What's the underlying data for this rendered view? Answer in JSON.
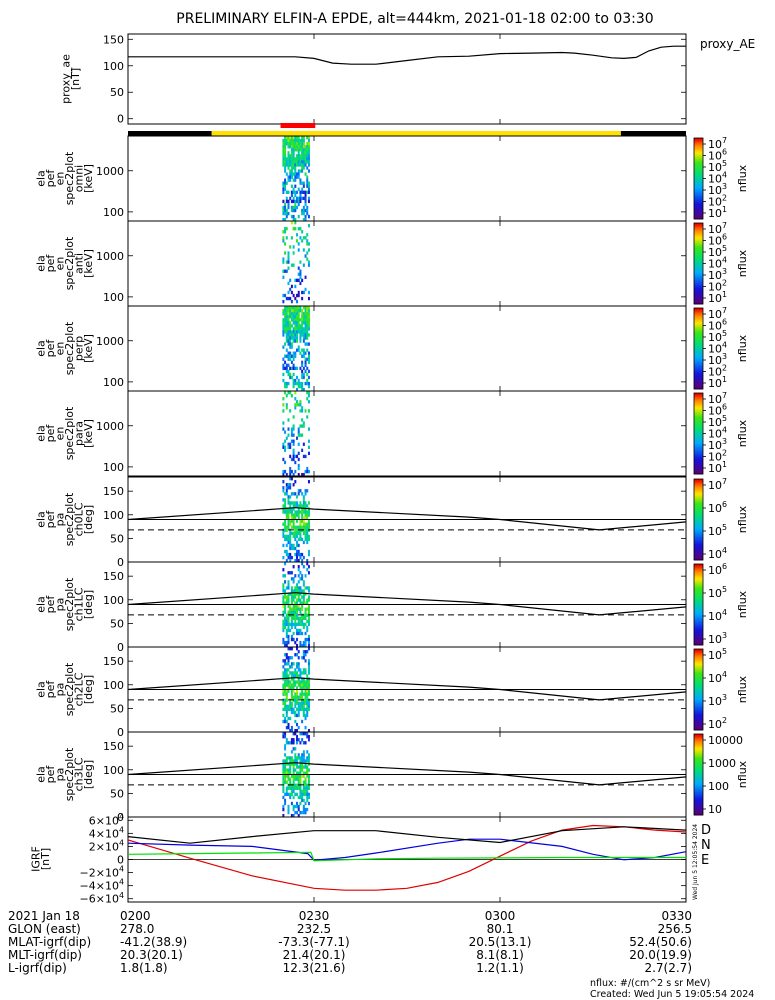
{
  "title": "PRELIMINARY ELFIN-A EPDE, alt=444km, 2021-01-18 02:00 to 03:30",
  "created": "Created: Wed Jun  5 19:05:54 2024",
  "side_stamp": "Wed Jun  5 12:05:54 2024",
  "nflux_units": "nflux: #/(cm^2 s sr MeV)",
  "colors": {
    "ae_line": "#000000",
    "status_black": "#000000",
    "status_yellow": "#ffe000",
    "status_red": "#ff0000",
    "D": "#e00000",
    "N": "#0000e0",
    "E": "#00e000"
  },
  "time_axis": {
    "ticks": [
      "0200",
      "0230",
      "0300",
      "0330"
    ],
    "tick_minutes": [
      0,
      30,
      60,
      90
    ],
    "rows": [
      {
        "label": "2021 Jan 18",
        "values": [
          "0200",
          "0230",
          "0300",
          "0330"
        ]
      },
      {
        "label": "GLON (east)",
        "values": [
          "278.0",
          "232.5",
          "80.1",
          "256.5"
        ]
      },
      {
        "label": "MLAT-igrf(dip)",
        "values": [
          "-41.2(38.9)",
          "-73.3(-77.1)",
          "20.5(13.1)",
          "52.4(50.6)"
        ]
      },
      {
        "label": "MLT-igrf(dip)",
        "values": [
          "20.3(20.1)",
          "21.4(20.1)",
          "8.1(8.1)",
          "20.0(19.9)"
        ]
      },
      {
        "label": "L-igrf(dip)",
        "values": [
          "1.8(1.8)",
          "12.3(21.6)",
          "1.2(1.1)",
          "2.7(2.7)"
        ]
      }
    ]
  },
  "status_bar": {
    "segments": [
      {
        "from": 0,
        "to": 13.5,
        "color": "black"
      },
      {
        "from": 13.5,
        "to": 79.5,
        "color": "yellow"
      },
      {
        "from": 79.5,
        "to": 90,
        "color": "black"
      }
    ],
    "science": {
      "from": 24.6,
      "to": 30.2,
      "color": "red"
    }
  },
  "panels": [
    {
      "id": "ae",
      "ylabel": [
        "proxy_ae",
        "[nT]"
      ],
      "legend": "proxy_AE",
      "ticks": [
        "150",
        "100",
        "50",
        "0"
      ]
    },
    {
      "id": "omni",
      "ylabel": [
        "ela",
        "pef",
        "en",
        "spec2plot",
        "omni",
        "[keV]"
      ],
      "ticks": [
        "1000",
        "100"
      ],
      "cb_label": "nflux",
      "cb_ticks": [
        "10^7",
        "10^6",
        "10^5",
        "10^4",
        "10^3",
        "10^2",
        "10^1"
      ]
    },
    {
      "id": "anti",
      "ylabel": [
        "ela",
        "pef",
        "en",
        "spec2plot",
        "anti",
        "[keV]"
      ],
      "ticks": [
        "1000",
        "100"
      ],
      "cb_label": "nflux",
      "cb_ticks": [
        "10^7",
        "10^6",
        "10^5",
        "10^4",
        "10^3",
        "10^2",
        "10^1"
      ]
    },
    {
      "id": "perp",
      "ylabel": [
        "ela",
        "pef",
        "en",
        "spec2plot",
        "perp",
        "[keV]"
      ],
      "ticks": [
        "1000",
        "100"
      ],
      "cb_label": "nflux",
      "cb_ticks": [
        "10^7",
        "10^6",
        "10^5",
        "10^4",
        "10^3",
        "10^2",
        "10^1"
      ]
    },
    {
      "id": "para",
      "ylabel": [
        "ela",
        "pef",
        "en",
        "spec2plot",
        "para",
        "[keV]"
      ],
      "ticks": [
        "1000",
        "100"
      ],
      "cb_label": "nflux",
      "cb_ticks": [
        "10^7",
        "10^6",
        "10^5",
        "10^4",
        "10^3",
        "10^2",
        "10^1"
      ]
    },
    {
      "id": "ch0",
      "ylabel": [
        "ela",
        "pef",
        "pa",
        "spec2plot",
        "ch0LC",
        "[deg]"
      ],
      "ticks": [
        "150",
        "100",
        "50",
        "0"
      ],
      "cb_label": "nflux",
      "cb_ticks": [
        "10^7",
        "10^6",
        "10^5",
        "10^4"
      ]
    },
    {
      "id": "ch1",
      "ylabel": [
        "ela",
        "pef",
        "pa",
        "spec2plot",
        "ch1LC",
        "[deg]"
      ],
      "ticks": [
        "150",
        "100",
        "50",
        "0"
      ],
      "cb_label": "nflux",
      "cb_ticks": [
        "10^6",
        "10^5",
        "10^4",
        "10^3"
      ]
    },
    {
      "id": "ch2",
      "ylabel": [
        "ela",
        "pef",
        "pa",
        "spec2plot",
        "ch2LC",
        "[deg]"
      ],
      "ticks": [
        "150",
        "100",
        "50",
        "0"
      ],
      "cb_label": "nflux",
      "cb_ticks": [
        "10^5",
        "10^4",
        "10^3",
        "10^2"
      ]
    },
    {
      "id": "ch3",
      "ylabel": [
        "ela",
        "pef",
        "pa",
        "spec2plot",
        "ch3LC",
        "[deg]"
      ],
      "ticks": [
        "150",
        "100",
        "50",
        "0"
      ],
      "cb_label": "nflux",
      "cb_ticks": [
        "10000",
        "1000",
        "100",
        "10"
      ]
    },
    {
      "id": "igrf",
      "ylabel": [
        "IGRF",
        "[nT]"
      ],
      "ticks": [
        "6×10^4",
        "4×10^4",
        "2×10^4",
        "0",
        "−2×10^4",
        "−4×10^4",
        "−6×10^4"
      ],
      "legend": [
        "D",
        "N",
        "E"
      ]
    }
  ],
  "chart_data": {
    "type": "line",
    "x_unit": "minutes after 2021-01-18 02:00",
    "xlim": [
      0,
      90
    ],
    "proxy_ae": {
      "ylim": [
        -10,
        160
      ],
      "x": [
        0,
        10,
        20,
        27,
        30,
        33,
        36,
        40,
        45,
        50,
        55,
        60,
        65,
        70,
        72,
        75,
        78,
        80,
        82,
        84,
        86,
        88,
        90
      ],
      "y": [
        117,
        117,
        117,
        117,
        114,
        105,
        103,
        103,
        110,
        117,
        118,
        123,
        124,
        125,
        124,
        120,
        115,
        114,
        116,
        128,
        135,
        137,
        137
      ]
    },
    "energy_spectrograms": {
      "yscale": "log",
      "ylim_keV": [
        60,
        7000
      ],
      "active_time_range": [
        24.9,
        29.3
      ],
      "note_visible": "flux only during science zone"
    },
    "pitch_angle": {
      "ylim_deg": [
        0,
        180
      ],
      "solid_curve": {
        "x": [
          0,
          27,
          30,
          55,
          60,
          76,
          90
        ],
        "y": [
          90,
          115,
          112,
          95,
          90,
          68,
          85
        ]
      },
      "dashed_curve": {
        "y": 68
      },
      "horizontal_line": {
        "y": 90
      }
    },
    "igrf": {
      "ylim": [
        -65000,
        65000
      ],
      "series": [
        {
          "name": "D",
          "x": [
            0,
            10,
            20,
            30,
            35,
            40,
            45,
            50,
            55,
            60,
            65,
            70,
            75,
            80,
            85,
            90
          ],
          "y": [
            30000,
            2000,
            -25000,
            -44000,
            -47000,
            -47000,
            -44000,
            -35000,
            -18000,
            5000,
            28000,
            45000,
            52000,
            50000,
            45000,
            42000
          ]
        },
        {
          "name": "N",
          "x": [
            0,
            10,
            20,
            29,
            30,
            35,
            40,
            50,
            55,
            60,
            70,
            75,
            80,
            85,
            90
          ],
          "y": [
            25000,
            22000,
            20000,
            9000,
            -1000,
            3000,
            10000,
            25000,
            31000,
            31000,
            20000,
            8000,
            -500,
            3000,
            12000
          ]
        },
        {
          "name": "E",
          "x": [
            0,
            10,
            20,
            29.5,
            30,
            40,
            50,
            60,
            70,
            80,
            90
          ],
          "y": [
            8000,
            9000,
            10000,
            11000,
            -2000,
            1000,
            2000,
            2500,
            3000,
            3000,
            3000
          ]
        },
        {
          "name": "",
          "x": [
            0,
            10,
            20,
            30,
            40,
            50,
            60,
            70,
            80,
            90
          ],
          "y": [
            35000,
            25000,
            35000,
            44000,
            44000,
            34000,
            26000,
            44000,
            50000,
            45000
          ]
        }
      ]
    }
  }
}
